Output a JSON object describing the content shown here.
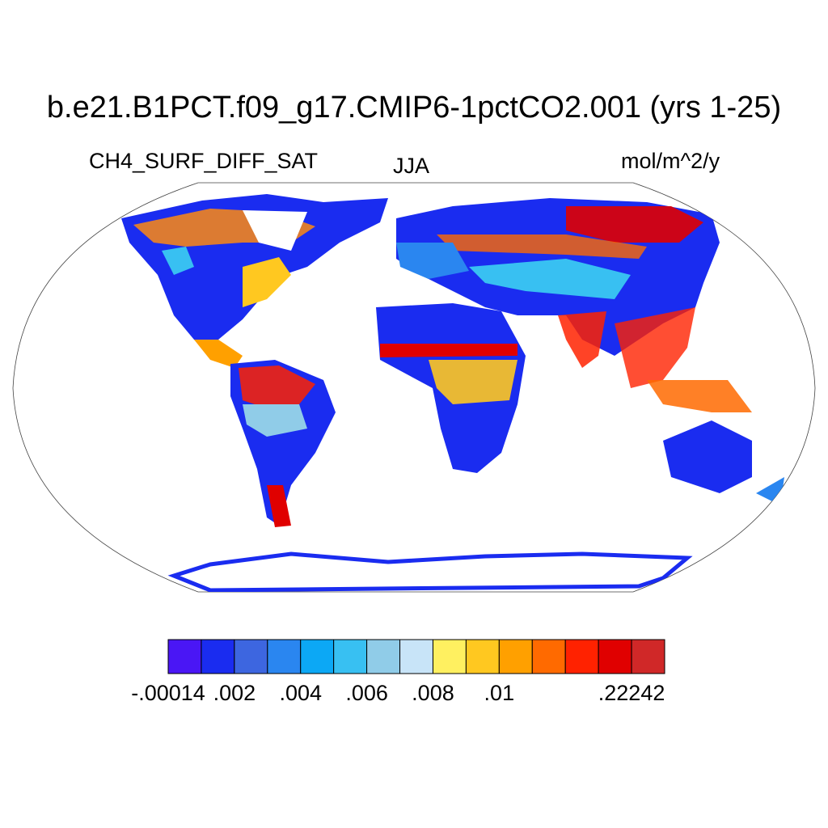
{
  "title": "b.e21.B1PCT.f09_g17.CMIP6-1pctCO2.001 (yrs 1-25)",
  "variable": "CH4_SURF_DIFF_SAT",
  "season": "JJA",
  "units": "mol/m^2/y",
  "colorbar": {
    "colors": [
      "#4a16f5",
      "#1a2cf0",
      "#3d66e0",
      "#2a86f0",
      "#0ca8f5",
      "#38c0f2",
      "#90cce8",
      "#c8e4f8",
      "#fff060",
      "#ffc820",
      "#ffa000",
      "#ff6a00",
      "#ff2200",
      "#e00000",
      "#d02828"
    ],
    "tick_labels": [
      {
        "label": "-.00014",
        "boundary": 0
      },
      {
        "label": ".002",
        "boundary": 2
      },
      {
        "label": ".004",
        "boundary": 4
      },
      {
        "label": ".006",
        "boundary": 6
      },
      {
        "label": ".008",
        "boundary": 8
      },
      {
        "label": ".01",
        "boundary": 10
      },
      {
        "label": ".22242",
        "boundary": 14
      }
    ]
  }
}
